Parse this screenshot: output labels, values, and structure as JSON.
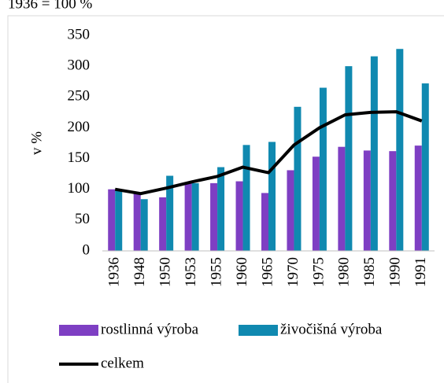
{
  "chart_data": {
    "type": "bar",
    "title": "1936 = 100 %",
    "ylabel": "v %",
    "categories": [
      "1936",
      "1948",
      "1950",
      "1953",
      "1955",
      "1960",
      "1965",
      "1970",
      "1975",
      "1980",
      "1985",
      "1990",
      "1991"
    ],
    "series": [
      {
        "name": "rostlinná výroba",
        "color": "#7e3fc3",
        "values": [
          100,
          93,
          87,
          110,
          110,
          113,
          94,
          131,
          153,
          169,
          163,
          162,
          171
        ]
      },
      {
        "name": "živočišná výroba",
        "color": "#1089b0",
        "values": [
          100,
          84,
          122,
          110,
          136,
          172,
          177,
          234,
          265,
          300,
          316,
          328,
          272
        ]
      },
      {
        "name": "celkem",
        "type": "line",
        "color": "#000000",
        "values": [
          100,
          93,
          102,
          112,
          121,
          136,
          127,
          172,
          200,
          221,
          225,
          226,
          211
        ]
      }
    ],
    "ylim": [
      0,
      350
    ],
    "yticks": [
      0,
      50,
      100,
      150,
      200,
      250,
      300,
      350
    ]
  }
}
